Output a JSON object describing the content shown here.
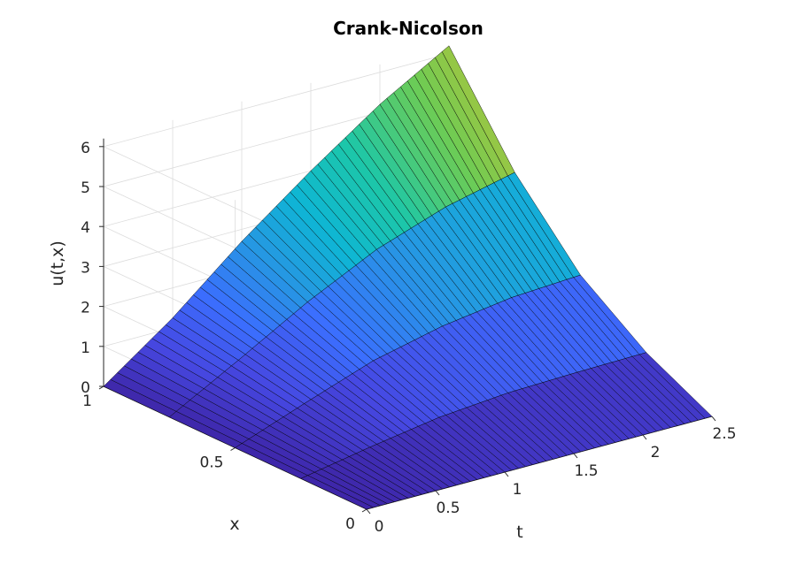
{
  "chart_data": {
    "type": "surface",
    "title": "Crank-Nicolson",
    "xlabel": "t",
    "ylabel": "x",
    "zlabel": "u(t,x)",
    "t_ticks": [
      "0",
      "0.5",
      "1",
      "1.5",
      "2",
      "2.5"
    ],
    "x_ticks": [
      "0",
      "0.5",
      "1"
    ],
    "z_ticks": [
      "0",
      "1",
      "2",
      "3",
      "4",
      "5",
      "6"
    ],
    "t_range": [
      0,
      2.5
    ],
    "x_range": [
      0,
      1
    ],
    "z_range": [
      0,
      6.2
    ],
    "grid": true,
    "colormap": "parula",
    "t": [
      0,
      0.5,
      1.0,
      1.5,
      2.0,
      2.5
    ],
    "x": [
      0,
      0.25,
      0.5,
      0.75,
      1.0
    ],
    "u": [
      [
        0.0,
        0.0,
        0.0,
        0.0,
        0.0
      ],
      [
        0.0,
        0.32,
        0.64,
        0.96,
        1.25
      ],
      [
        0.0,
        0.6,
        1.25,
        1.95,
        2.7
      ],
      [
        0.0,
        0.75,
        1.65,
        2.8,
        4.0
      ],
      [
        0.0,
        0.8,
        1.9,
        3.4,
        5.2
      ],
      [
        0.0,
        0.83,
        2.0,
        3.8,
        6.2
      ]
    ]
  }
}
